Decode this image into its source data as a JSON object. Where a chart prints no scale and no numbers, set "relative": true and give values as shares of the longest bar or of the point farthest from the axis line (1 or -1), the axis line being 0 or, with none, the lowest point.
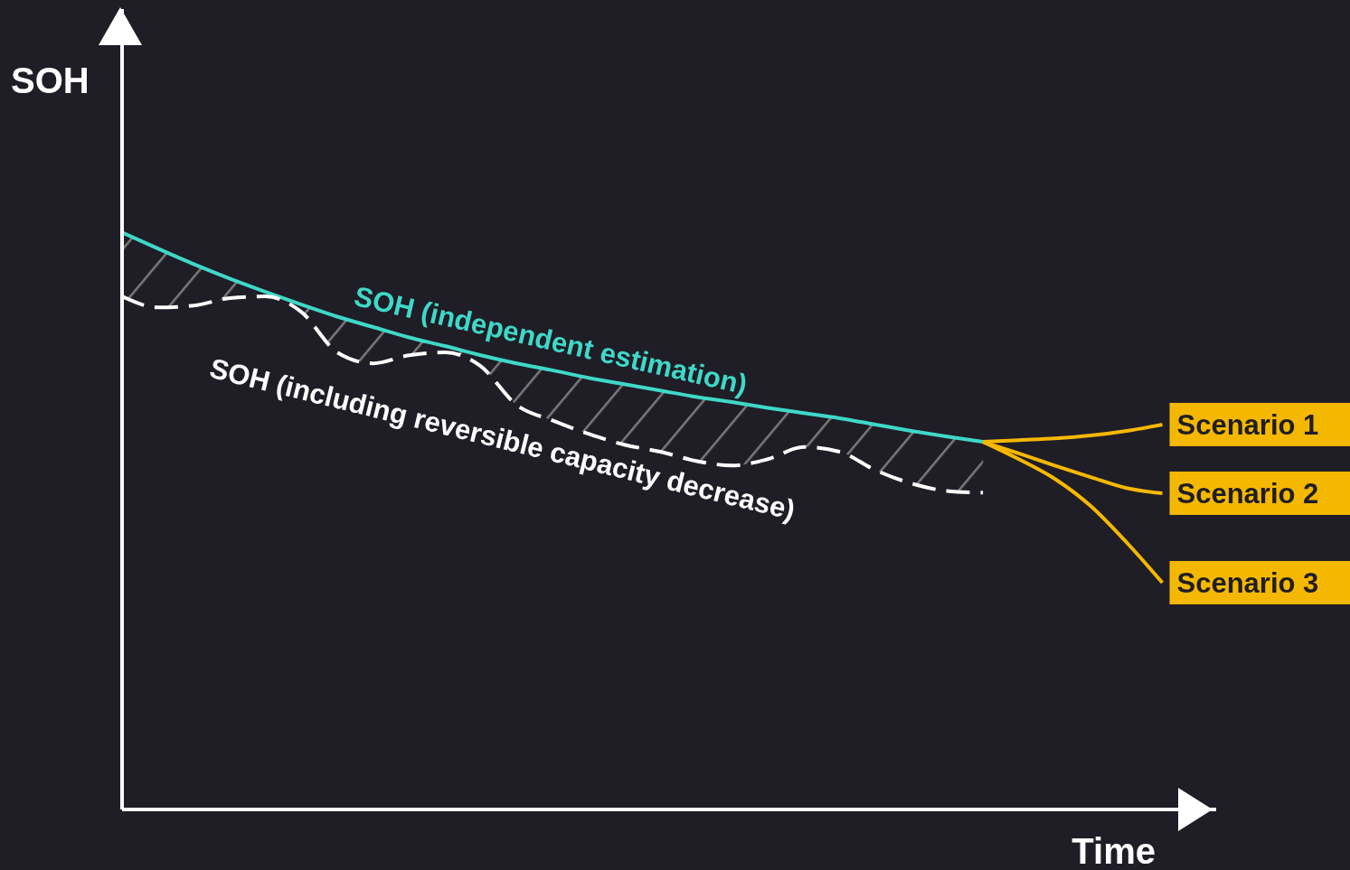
{
  "chart_data": {
    "type": "line",
    "relative": true,
    "xlabel": "Time",
    "ylabel": "SOH",
    "marker": "none",
    "categories": [
      null,
      null,
      null,
      null,
      null,
      null,
      null,
      null,
      null,
      null,
      null,
      null,
      null,
      null,
      null,
      null,
      null,
      null,
      null,
      null,
      null,
      null,
      null,
      null,
      null,
      null,
      null,
      null,
      null,
      null
    ],
    "series": [
      {
        "name": "SOH (independent estimation)",
        "color": "#3fd8c8",
        "line_style": "solid",
        "values": [
          1.0,
          0.972,
          0.945,
          0.92,
          0.897,
          0.875,
          0.854,
          0.836,
          0.818,
          0.803,
          0.787,
          0.773,
          0.761,
          0.748,
          0.737,
          0.726,
          0.715,
          0.706,
          0.696,
          0.687,
          0.678,
          0.667,
          0.656,
          0.646,
          0.637,
          null,
          null,
          null,
          null,
          null
        ],
        "lower": [
          0.889,
          0.87,
          0.873,
          0.886,
          0.889,
          0.862,
          0.792,
          0.773,
          0.787,
          0.792,
          0.768,
          0.701,
          0.674,
          0.651,
          0.632,
          0.62,
          0.604,
          0.596,
          0.607,
          0.628,
          0.62,
          0.588,
          0.565,
          0.552,
          0.549,
          null,
          null,
          null,
          null,
          null
        ],
        "upper": [
          1.0,
          0.972,
          0.945,
          0.92,
          0.897,
          0.875,
          0.854,
          0.836,
          0.818,
          0.803,
          0.787,
          0.773,
          0.761,
          0.748,
          0.737,
          0.726,
          0.715,
          0.706,
          0.696,
          0.687,
          0.678,
          0.667,
          0.656,
          0.646,
          0.637,
          null,
          null,
          null,
          null,
          null
        ]
      },
      {
        "name": "SOH (including reversible capacity decrease)",
        "color": "#ffffff",
        "line_style": "dashed",
        "values": [
          0.889,
          0.87,
          0.873,
          0.886,
          0.889,
          0.862,
          0.792,
          0.773,
          0.787,
          0.792,
          0.768,
          0.701,
          0.674,
          0.651,
          0.632,
          0.62,
          0.604,
          0.596,
          0.607,
          0.628,
          0.62,
          0.588,
          0.565,
          0.552,
          0.549,
          null,
          null,
          null,
          null,
          null
        ]
      },
      {
        "name": "Scenario 1",
        "color": "#f5b800",
        "line_style": "solid",
        "values": [
          null,
          null,
          null,
          null,
          null,
          null,
          null,
          null,
          null,
          null,
          null,
          null,
          null,
          null,
          null,
          null,
          null,
          null,
          null,
          null,
          null,
          null,
          null,
          null,
          0.637,
          0.64,
          0.643,
          0.648,
          0.656,
          0.667
        ]
      },
      {
        "name": "Scenario 2",
        "color": "#f5b800",
        "line_style": "solid",
        "values": [
          null,
          null,
          null,
          null,
          null,
          null,
          null,
          null,
          null,
          null,
          null,
          null,
          null,
          null,
          null,
          null,
          null,
          null,
          null,
          null,
          null,
          null,
          null,
          null,
          0.637,
          0.617,
          0.596,
          0.576,
          0.557,
          0.548
        ]
      },
      {
        "name": "Scenario 3",
        "color": "#f5b800",
        "line_style": "solid",
        "values": [
          null,
          null,
          null,
          null,
          null,
          null,
          null,
          null,
          null,
          null,
          null,
          null,
          null,
          null,
          null,
          null,
          null,
          null,
          null,
          null,
          null,
          null,
          null,
          null,
          0.637,
          0.607,
          0.573,
          0.526,
          0.463,
          0.393
        ]
      }
    ]
  }
}
